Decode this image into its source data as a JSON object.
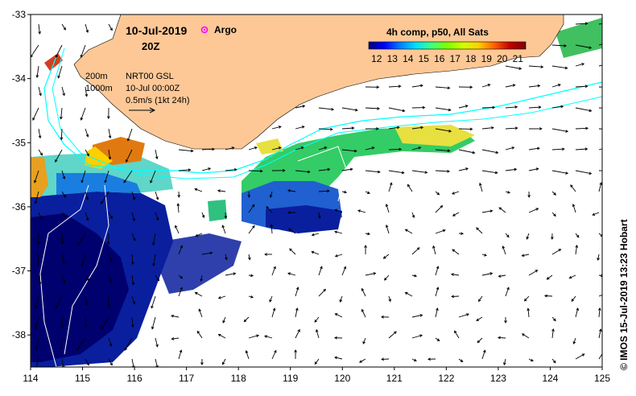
{
  "header": {
    "date": "10-Jul-2019",
    "time": "20Z",
    "argo_label": "Argo",
    "colorbar_title": "4h comp, p50, All Sats"
  },
  "legend": {
    "contour_200": "200m",
    "contour_1000": "1000m",
    "product": "NRT00 GSL",
    "product_time": "10-Jul 00:00Z",
    "scale": "0.5m/s (1kt 24h)"
  },
  "colorbar": {
    "ticks": [
      "12",
      "13",
      "14",
      "15",
      "16",
      "17",
      "18",
      "19",
      "20",
      "21"
    ],
    "range": [
      11.5,
      21.5
    ],
    "colors": [
      "#00007f",
      "#0000ff",
      "#0080ff",
      "#00e0ff",
      "#40ff80",
      "#80ff00",
      "#d0ff00",
      "#ffd000",
      "#ff6000",
      "#c00000",
      "#800000"
    ]
  },
  "axes": {
    "x_ticks": [
      "114",
      "115",
      "116",
      "117",
      "118",
      "119",
      "120",
      "121",
      "122",
      "123",
      "124",
      "125"
    ],
    "y_ticks": [
      "-33",
      "-34",
      "-35",
      "-36",
      "-37",
      "-38"
    ],
    "lon_range": [
      114,
      125
    ],
    "lat_range": [
      -38.5,
      -33
    ]
  },
  "credit": "© IMOS 15-Jul-2019 13:23 Hobart",
  "colors": {
    "land": "#fdc896",
    "contour_200": "#00ffff",
    "contour_1000": "#ffffff",
    "argo": "#ff00ff"
  }
}
